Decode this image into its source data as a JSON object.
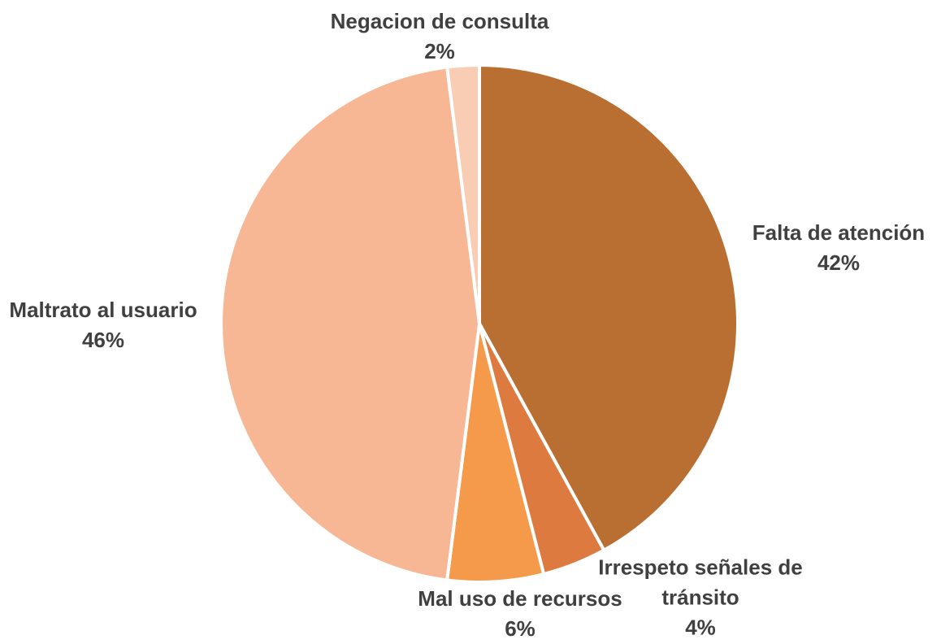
{
  "chart_data": {
    "type": "pie",
    "categories": [
      "Falta de atención",
      "Irrespeto señales de tránsito",
      "Mal uso de recursos",
      "Maltrato al usuario",
      "Negacion de consulta"
    ],
    "values": [
      42,
      4,
      6,
      46,
      2
    ],
    "value_labels": [
      "42%",
      "4%",
      "6%",
      "46%",
      "2%"
    ],
    "colors": [
      "#b96f32",
      "#dc7a40",
      "#f59a4a",
      "#f7b794",
      "#f9cdb4"
    ]
  }
}
